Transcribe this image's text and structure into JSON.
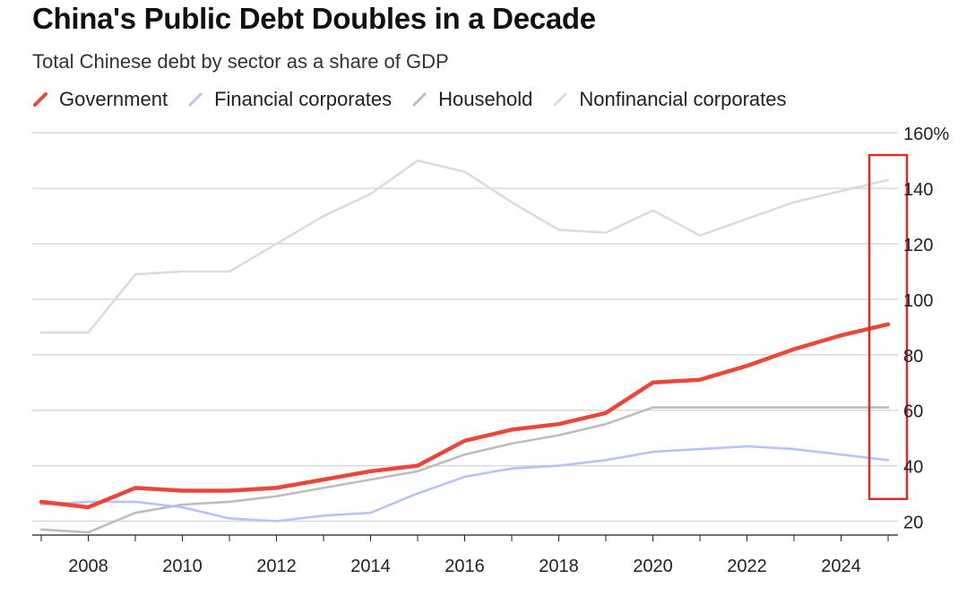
{
  "header": {
    "title": "China's Public Debt Doubles in a Decade",
    "subtitle": "Total Chinese debt by sector as a share of GDP"
  },
  "colors": {
    "Government": "#e8473a",
    "Financial corporates": "#b8c2f5",
    "Household": "#bdbdbd",
    "Nonfinancial corporates": "#dcdcdc",
    "grid": "#d9d9d9",
    "axis": "#222222",
    "highlight_box": "#d62d2d"
  },
  "chart_data": {
    "type": "line",
    "title": "China's Public Debt Doubles in a Decade",
    "subtitle": "Total Chinese debt by sector as a share of GDP",
    "xlabel": "",
    "ylabel": "",
    "ylim": [
      15,
      160
    ],
    "xlim": [
      2007,
      2026
    ],
    "grid": true,
    "y_axis_side": "right",
    "legend_position": "top",
    "x_ticks": [
      "2008",
      "2010",
      "2012",
      "2014",
      "2016",
      "2018",
      "2020",
      "2022",
      "2024"
    ],
    "y_ticks": [
      {
        "value": 20,
        "label": "20"
      },
      {
        "value": 40,
        "label": "40"
      },
      {
        "value": 60,
        "label": "60"
      },
      {
        "value": 80,
        "label": "80"
      },
      {
        "value": 100,
        "label": "100"
      },
      {
        "value": 120,
        "label": "120"
      },
      {
        "value": 140,
        "label": "140"
      },
      {
        "value": 160,
        "label": "160%"
      }
    ],
    "x": [
      2007,
      2008,
      2009,
      2010,
      2011,
      2012,
      2013,
      2014,
      2015,
      2016,
      2017,
      2018,
      2019,
      2020,
      2021,
      2022,
      2023,
      2024,
      2025
    ],
    "series": [
      {
        "name": "Nonfinancial corporates",
        "values": [
          88,
          88,
          109,
          110,
          110,
          120,
          130,
          138,
          150,
          146,
          135,
          125,
          124,
          132,
          123,
          129,
          135,
          139,
          143
        ]
      },
      {
        "name": "Household",
        "values": [
          17,
          16,
          23,
          26,
          27,
          29,
          32,
          35,
          38,
          44,
          48,
          51,
          55,
          61,
          61,
          61,
          61,
          61,
          61
        ]
      },
      {
        "name": "Financial corporates",
        "values": [
          26,
          27,
          27,
          25,
          21,
          20,
          22,
          23,
          30,
          36,
          39,
          40,
          42,
          45,
          46,
          47,
          46,
          44,
          42
        ]
      },
      {
        "name": "Government",
        "values": [
          27,
          25,
          32,
          31,
          31,
          32,
          35,
          38,
          40,
          49,
          53,
          55,
          59,
          70,
          71,
          76,
          82,
          87,
          91
        ]
      }
    ],
    "annotations": [
      {
        "type": "highlight-box",
        "x_range": [
          2024.6,
          2025.4
        ],
        "y_range": [
          28,
          152
        ]
      }
    ]
  }
}
